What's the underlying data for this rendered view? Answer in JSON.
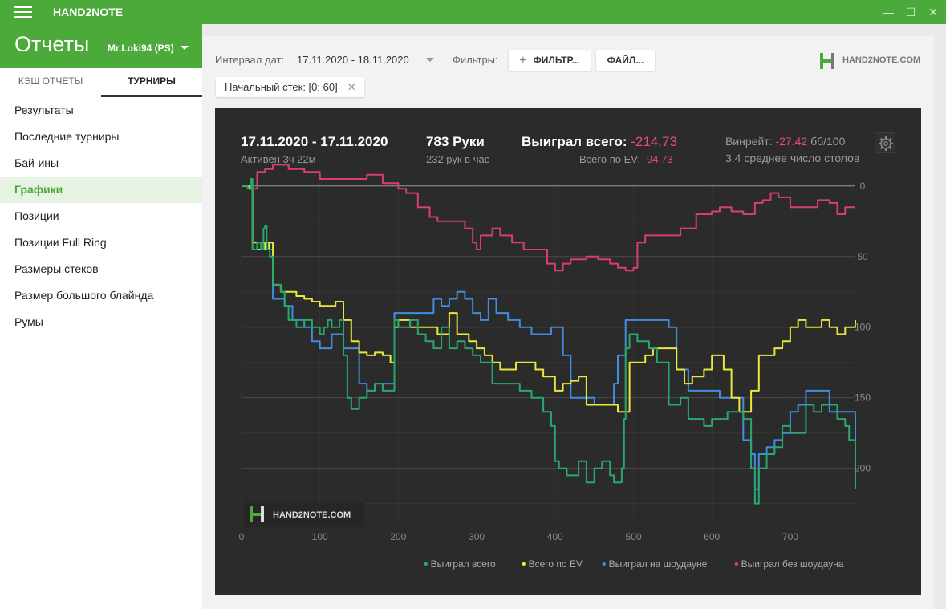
{
  "titlebar": {
    "app_name": "HAND2NOTE",
    "minimize": "—",
    "maximize": "☐",
    "close": "✕"
  },
  "header": {
    "title": "Отчеты",
    "user": "Mr.Loki94 (PS)"
  },
  "tabs": [
    {
      "label": "КЭШ ОТЧЕТЫ"
    },
    {
      "label": "ТУРНИРЫ"
    }
  ],
  "sidebar": {
    "items": [
      {
        "label": "Результаты"
      },
      {
        "label": "Последние турниры"
      },
      {
        "label": "Бай-ины"
      },
      {
        "label": "Графики"
      },
      {
        "label": "Позиции"
      },
      {
        "label": "Позиции Full Ring"
      },
      {
        "label": "Размеры стеков"
      },
      {
        "label": "Размер большого блайнда"
      },
      {
        "label": "Румы"
      }
    ]
  },
  "toolbar": {
    "date_label": "Интервал дат:",
    "date_value": "17.11.2020 - 18.11.2020",
    "filters_label": "Фильтры:",
    "filter_button": "ФИЛЬТР...",
    "file_button": "ФАЙЛ...",
    "brand": "HAND2NOTE.COM"
  },
  "chip": {
    "label": "Начальный стек: [0; 60]",
    "close": "✕"
  },
  "stats": {
    "date_range": "17.11.2020 - 17.11.2020",
    "active": "Активен 3ч 22м",
    "hands": "783 Руки",
    "hands_per_hour": "232 рук в час",
    "won_label": "Выиграл всего:",
    "won_value": "-214.73",
    "ev_label": "Всего по EV:",
    "ev_value": "-94.73",
    "winrate_label": "Винрейт:",
    "winrate_value": "-27.42",
    "winrate_unit": "бб/100",
    "tables": "3.4 среднее число столов"
  },
  "watermark": "HAND2NOTE.COM",
  "colors": {
    "accent": "#4caa3b",
    "green": "#29a86e",
    "yellow": "#e8e83c",
    "blue": "#3f8ee0",
    "pink": "#d83e75"
  },
  "chart_data": {
    "type": "line",
    "x_ticks": [
      0,
      100,
      200,
      300,
      400,
      500,
      600,
      700
    ],
    "y_ticks": [
      0,
      50,
      100,
      150,
      200
    ],
    "xlim": [
      0,
      783
    ],
    "ylim": [
      -5,
      240
    ],
    "y_axis_inverted_labels": true,
    "grid": true,
    "legend_position": "bottom-right",
    "series": [
      {
        "name": "Выиграл всего",
        "color": "#29a86e",
        "points": [
          [
            0,
            0
          ],
          [
            8,
            2
          ],
          [
            12,
            -5
          ],
          [
            14,
            45
          ],
          [
            20,
            40
          ],
          [
            25,
            45
          ],
          [
            28,
            30
          ],
          [
            30,
            28
          ],
          [
            32,
            45
          ],
          [
            36,
            50
          ],
          [
            40,
            70
          ],
          [
            50,
            75
          ],
          [
            55,
            85
          ],
          [
            60,
            95
          ],
          [
            70,
            100
          ],
          [
            80,
            95
          ],
          [
            90,
            100
          ],
          [
            100,
            105
          ],
          [
            105,
            100
          ],
          [
            110,
            95
          ],
          [
            115,
            100
          ],
          [
            120,
            100
          ],
          [
            125,
            95
          ],
          [
            130,
            120
          ],
          [
            135,
            150
          ],
          [
            140,
            158
          ],
          [
            150,
            150
          ],
          [
            160,
            145
          ],
          [
            170,
            140
          ],
          [
            180,
            145
          ],
          [
            190,
            145
          ],
          [
            195,
            95
          ],
          [
            200,
            100
          ],
          [
            215,
            95
          ],
          [
            225,
            105
          ],
          [
            235,
            110
          ],
          [
            245,
            115
          ],
          [
            255,
            100
          ],
          [
            265,
            115
          ],
          [
            275,
            110
          ],
          [
            285,
            115
          ],
          [
            295,
            120
          ],
          [
            305,
            125
          ],
          [
            320,
            140
          ],
          [
            340,
            140
          ],
          [
            355,
            145
          ],
          [
            370,
            150
          ],
          [
            385,
            160
          ],
          [
            395,
            170
          ],
          [
            400,
            195
          ],
          [
            405,
            200
          ],
          [
            415,
            205
          ],
          [
            425,
            205
          ],
          [
            430,
            195
          ],
          [
            440,
            210
          ],
          [
            450,
            200
          ],
          [
            460,
            195
          ],
          [
            470,
            205
          ],
          [
            475,
            210
          ],
          [
            485,
            200
          ],
          [
            488,
            165
          ],
          [
            490,
            115
          ],
          [
            495,
            105
          ],
          [
            505,
            110
          ],
          [
            520,
            115
          ],
          [
            530,
            125
          ],
          [
            545,
            155
          ],
          [
            560,
            150
          ],
          [
            570,
            165
          ],
          [
            580,
            165
          ],
          [
            590,
            170
          ],
          [
            600,
            165
          ],
          [
            620,
            160
          ],
          [
            640,
            165
          ],
          [
            650,
            200
          ],
          [
            655,
            225
          ],
          [
            660,
            200
          ],
          [
            670,
            190
          ],
          [
            680,
            185
          ],
          [
            690,
            170
          ],
          [
            700,
            175
          ],
          [
            710,
            175
          ],
          [
            720,
            155
          ],
          [
            730,
            160
          ],
          [
            740,
            155
          ],
          [
            760,
            165
          ],
          [
            770,
            170
          ],
          [
            775,
            180
          ],
          [
            783,
            215
          ]
        ]
      },
      {
        "name": "Всего по EV",
        "color": "#e8e83c",
        "points": [
          [
            0,
            0
          ],
          [
            10,
            2
          ],
          [
            14,
            40
          ],
          [
            20,
            45
          ],
          [
            25,
            40
          ],
          [
            30,
            45
          ],
          [
            35,
            40
          ],
          [
            40,
            70
          ],
          [
            50,
            75
          ],
          [
            60,
            75
          ],
          [
            70,
            78
          ],
          [
            80,
            80
          ],
          [
            90,
            82
          ],
          [
            100,
            85
          ],
          [
            110,
            85
          ],
          [
            120,
            82
          ],
          [
            130,
            95
          ],
          [
            140,
            110
          ],
          [
            150,
            118
          ],
          [
            160,
            120
          ],
          [
            170,
            118
          ],
          [
            180,
            120
          ],
          [
            190,
            125
          ],
          [
            195,
            100
          ],
          [
            200,
            95
          ],
          [
            215,
            100
          ],
          [
            230,
            100
          ],
          [
            250,
            105
          ],
          [
            265,
            90
          ],
          [
            275,
            105
          ],
          [
            290,
            110
          ],
          [
            300,
            115
          ],
          [
            310,
            120
          ],
          [
            320,
            125
          ],
          [
            330,
            130
          ],
          [
            340,
            130
          ],
          [
            350,
            125
          ],
          [
            365,
            125
          ],
          [
            375,
            130
          ],
          [
            385,
            135
          ],
          [
            400,
            145
          ],
          [
            410,
            140
          ],
          [
            420,
            138
          ],
          [
            430,
            135
          ],
          [
            440,
            155
          ],
          [
            450,
            155
          ],
          [
            470,
            155
          ],
          [
            480,
            160
          ],
          [
            485,
            160
          ],
          [
            495,
            125
          ],
          [
            505,
            125
          ],
          [
            515,
            120
          ],
          [
            525,
            115
          ],
          [
            535,
            115
          ],
          [
            545,
            115
          ],
          [
            555,
            130
          ],
          [
            565,
            140
          ],
          [
            575,
            135
          ],
          [
            590,
            130
          ],
          [
            600,
            120
          ],
          [
            615,
            130
          ],
          [
            625,
            150
          ],
          [
            635,
            160
          ],
          [
            645,
            160
          ],
          [
            650,
            145
          ],
          [
            660,
            120
          ],
          [
            670,
            120
          ],
          [
            680,
            115
          ],
          [
            690,
            110
          ],
          [
            700,
            100
          ],
          [
            710,
            95
          ],
          [
            720,
            100
          ],
          [
            730,
            100
          ],
          [
            740,
            95
          ],
          [
            750,
            100
          ],
          [
            760,
            105
          ],
          [
            770,
            100
          ],
          [
            783,
            95
          ]
        ]
      },
      {
        "name": "Выиграл на шоудауне",
        "color": "#3f8ee0",
        "points": [
          [
            0,
            0
          ],
          [
            10,
            2
          ],
          [
            14,
            45
          ],
          [
            20,
            40
          ],
          [
            25,
            45
          ],
          [
            30,
            40
          ],
          [
            36,
            45
          ],
          [
            40,
            80
          ],
          [
            55,
            85
          ],
          [
            65,
            95
          ],
          [
            80,
            100
          ],
          [
            90,
            110
          ],
          [
            100,
            115
          ],
          [
            110,
            115
          ],
          [
            115,
            105
          ],
          [
            130,
            115
          ],
          [
            140,
            115
          ],
          [
            150,
            140
          ],
          [
            160,
            145
          ],
          [
            170,
            140
          ],
          [
            180,
            140
          ],
          [
            190,
            140
          ],
          [
            195,
            90
          ],
          [
            225,
            90
          ],
          [
            235,
            90
          ],
          [
            245,
            80
          ],
          [
            255,
            85
          ],
          [
            265,
            80
          ],
          [
            275,
            75
          ],
          [
            285,
            80
          ],
          [
            295,
            90
          ],
          [
            305,
            95
          ],
          [
            315,
            80
          ],
          [
            325,
            90
          ],
          [
            340,
            95
          ],
          [
            355,
            100
          ],
          [
            370,
            105
          ],
          [
            380,
            105
          ],
          [
            395,
            100
          ],
          [
            410,
            120
          ],
          [
            420,
            150
          ],
          [
            440,
            150
          ],
          [
            450,
            155
          ],
          [
            465,
            155
          ],
          [
            475,
            140
          ],
          [
            480,
            120
          ],
          [
            490,
            95
          ],
          [
            510,
            95
          ],
          [
            530,
            95
          ],
          [
            545,
            100
          ],
          [
            555,
            130
          ],
          [
            570,
            145
          ],
          [
            590,
            145
          ],
          [
            610,
            150
          ],
          [
            625,
            150
          ],
          [
            640,
            180
          ],
          [
            650,
            190
          ],
          [
            655,
            215
          ],
          [
            660,
            190
          ],
          [
            670,
            185
          ],
          [
            680,
            180
          ],
          [
            690,
            175
          ],
          [
            700,
            160
          ],
          [
            710,
            155
          ],
          [
            720,
            145
          ],
          [
            740,
            145
          ],
          [
            750,
            160
          ],
          [
            770,
            160
          ],
          [
            783,
            190
          ]
        ]
      },
      {
        "name": "Выиграл без шоудауна",
        "color": "#d83e75",
        "points": [
          [
            0,
            0
          ],
          [
            10,
            2
          ],
          [
            20,
            -10
          ],
          [
            30,
            -12
          ],
          [
            40,
            -15
          ],
          [
            60,
            -12
          ],
          [
            80,
            -10
          ],
          [
            100,
            -5
          ],
          [
            130,
            -5
          ],
          [
            160,
            -8
          ],
          [
            180,
            -2
          ],
          [
            200,
            2
          ],
          [
            210,
            5
          ],
          [
            225,
            15
          ],
          [
            240,
            22
          ],
          [
            250,
            25
          ],
          [
            265,
            25
          ],
          [
            285,
            30
          ],
          [
            295,
            40
          ],
          [
            300,
            45
          ],
          [
            305,
            35
          ],
          [
            320,
            30
          ],
          [
            330,
            35
          ],
          [
            345,
            40
          ],
          [
            360,
            45
          ],
          [
            375,
            45
          ],
          [
            390,
            55
          ],
          [
            400,
            60
          ],
          [
            410,
            55
          ],
          [
            420,
            52
          ],
          [
            430,
            52
          ],
          [
            440,
            50
          ],
          [
            455,
            52
          ],
          [
            470,
            55
          ],
          [
            480,
            58
          ],
          [
            490,
            60
          ],
          [
            500,
            58
          ],
          [
            505,
            40
          ],
          [
            515,
            35
          ],
          [
            530,
            35
          ],
          [
            545,
            35
          ],
          [
            560,
            30
          ],
          [
            580,
            20
          ],
          [
            600,
            18
          ],
          [
            610,
            15
          ],
          [
            625,
            18
          ],
          [
            640,
            20
          ],
          [
            655,
            12
          ],
          [
            665,
            10
          ],
          [
            675,
            5
          ],
          [
            685,
            8
          ],
          [
            700,
            15
          ],
          [
            715,
            15
          ],
          [
            735,
            10
          ],
          [
            750,
            12
          ],
          [
            760,
            20
          ],
          [
            770,
            15
          ],
          [
            783,
            15
          ]
        ]
      }
    ]
  }
}
